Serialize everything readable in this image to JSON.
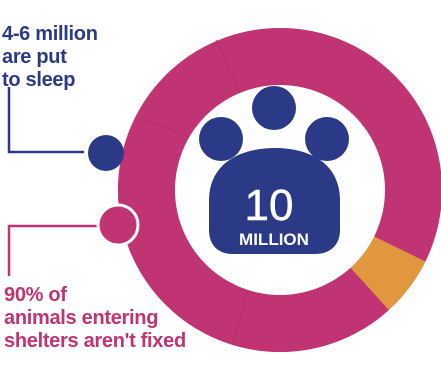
{
  "colors": {
    "ring": "#c03473",
    "ring_inner": "#b02c68",
    "highlight": "#e0973d",
    "paw": "#2b3a87",
    "white": "#ffffff"
  },
  "center": {
    "number": "10",
    "unit": "MILLION",
    "icon": "paw-print-icon"
  },
  "callouts": {
    "top": {
      "lines": [
        "4-6 million",
        "are put",
        "to sleep"
      ],
      "color": "#2b3a87"
    },
    "bottom": {
      "lines": [
        "90% of",
        "animals entering",
        "shelters aren't fixed"
      ],
      "color": "#c03473"
    }
  },
  "chart_data": {
    "type": "pie",
    "title": "",
    "categories": [
      "",
      ""
    ],
    "values": [
      94,
      6
    ],
    "colors": [
      "#c03473",
      "#e0973d"
    ]
  }
}
